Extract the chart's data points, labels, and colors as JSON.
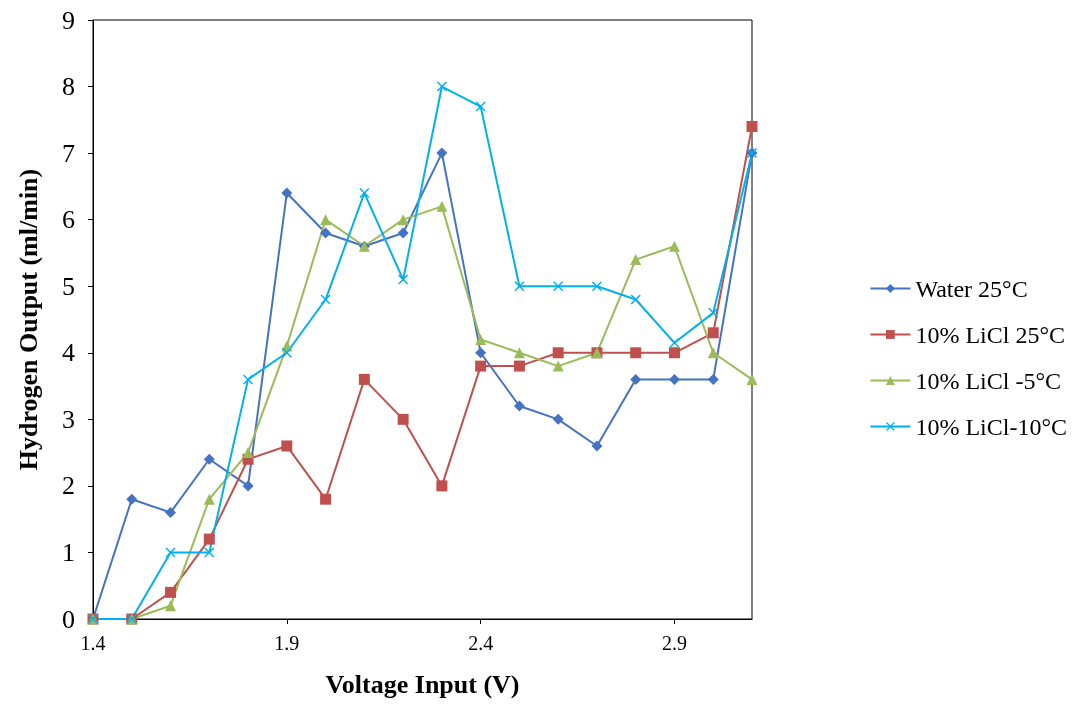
{
  "chart_data": {
    "type": "line",
    "xlabel": "Voltage Input (V)",
    "ylabel": "Hydrogen Output (ml/min)",
    "x": [
      1.4,
      1.5,
      1.6,
      1.7,
      1.8,
      1.9,
      2.0,
      2.1,
      2.2,
      2.3,
      2.4,
      2.5,
      2.6,
      2.7,
      2.8,
      2.9,
      3.0,
      3.1
    ],
    "series": [
      {
        "name": "Water 25°C",
        "color": "#4472c4",
        "marker": "diamond",
        "values": [
          0,
          1.8,
          1.6,
          2.4,
          2.0,
          6.4,
          5.8,
          5.6,
          5.8,
          7.0,
          4.0,
          3.2,
          3.0,
          2.6,
          3.6,
          3.6,
          3.6,
          7.0
        ]
      },
      {
        "name": "10% LiCl 25°C",
        "color": "#c0504d",
        "marker": "square",
        "values": [
          0,
          0,
          0.4,
          1.2,
          2.4,
          2.6,
          1.8,
          3.6,
          3.0,
          2.0,
          3.8,
          3.8,
          4.0,
          4.0,
          4.0,
          4.0,
          4.3,
          7.4
        ]
      },
      {
        "name": "10% LiCl -5°C",
        "color": "#9bbb59",
        "marker": "triangle",
        "values": [
          0,
          0,
          0.2,
          1.8,
          2.5,
          4.1,
          6.0,
          5.6,
          6.0,
          6.2,
          4.2,
          4.0,
          3.8,
          4.0,
          5.4,
          5.6,
          4.0,
          3.6
        ]
      },
      {
        "name": "10% LiCl-10°C",
        "color": "#00b0f0",
        "marker": "cross",
        "values": [
          0,
          0,
          1.0,
          1.0,
          3.6,
          4.0,
          4.8,
          6.4,
          5.1,
          8.0,
          7.7,
          5.0,
          5.0,
          5.0,
          4.8,
          4.15,
          4.6,
          7.0
        ]
      }
    ],
    "xlim": [
      1.4,
      3.1
    ],
    "xticks": [
      1.4,
      1.9,
      2.4,
      2.9
    ],
    "ylim": [
      0,
      9
    ],
    "yticks": [
      0,
      1,
      2,
      3,
      4,
      5,
      6,
      7,
      8,
      9
    ],
    "grid": false,
    "legend": "right",
    "line_style": "solid"
  }
}
